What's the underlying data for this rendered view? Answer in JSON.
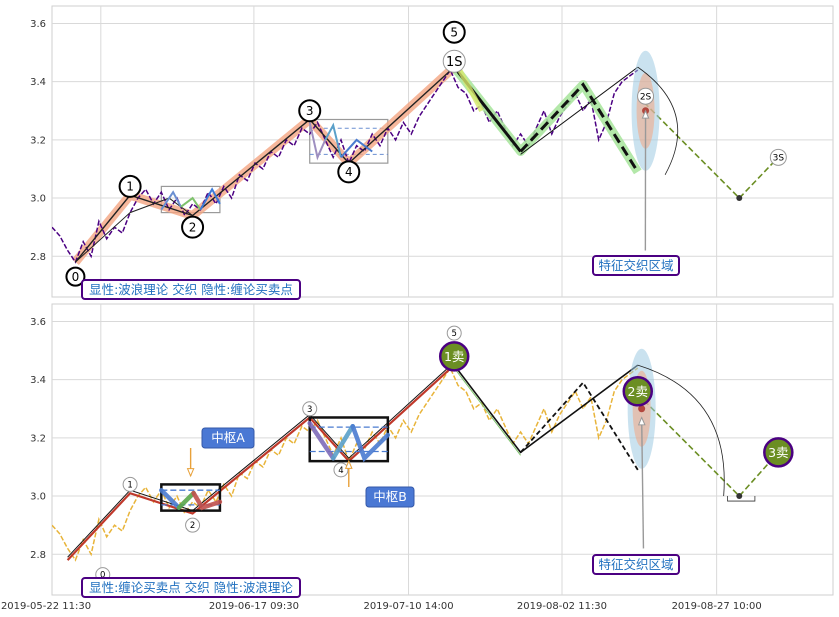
{
  "chart_data": [
    {
      "type": "line",
      "title": "",
      "ylim": [
        2.66,
        3.66
      ],
      "yticks": [
        2.8,
        3.0,
        3.2,
        3.4,
        3.6
      ],
      "grid": true,
      "caption": "显性:波浪理论 交织 隐性:缠论买卖点",
      "region_label": "特征交织区域",
      "price_series": [
        [
          0,
          2.9
        ],
        [
          2,
          2.87
        ],
        [
          4,
          2.82
        ],
        [
          6,
          2.78
        ],
        [
          8,
          2.85
        ],
        [
          10,
          2.8
        ],
        [
          12,
          2.92
        ],
        [
          14,
          2.86
        ],
        [
          16,
          2.9
        ],
        [
          18,
          2.88
        ],
        [
          20,
          2.95
        ],
        [
          22,
          3.0
        ],
        [
          24,
          3.03
        ],
        [
          26,
          2.98
        ],
        [
          28,
          3.02
        ],
        [
          30,
          2.96
        ],
        [
          32,
          3.0
        ],
        [
          34,
          2.94
        ],
        [
          36,
          2.98
        ],
        [
          38,
          2.96
        ],
        [
          40,
          3.02
        ],
        [
          42,
          2.98
        ],
        [
          44,
          3.04
        ],
        [
          46,
          3.0
        ],
        [
          48,
          3.08
        ],
        [
          50,
          3.06
        ],
        [
          52,
          3.12
        ],
        [
          54,
          3.1
        ],
        [
          56,
          3.16
        ],
        [
          58,
          3.14
        ],
        [
          60,
          3.2
        ],
        [
          62,
          3.18
        ],
        [
          64,
          3.24
        ],
        [
          66,
          3.22
        ],
        [
          68,
          3.26
        ],
        [
          70,
          3.2
        ],
        [
          72,
          3.14
        ],
        [
          74,
          3.2
        ],
        [
          76,
          3.12
        ],
        [
          78,
          3.18
        ],
        [
          80,
          3.16
        ],
        [
          82,
          3.22
        ],
        [
          84,
          3.18
        ],
        [
          86,
          3.24
        ],
        [
          88,
          3.2
        ],
        [
          90,
          3.26
        ],
        [
          92,
          3.22
        ],
        [
          94,
          3.28
        ],
        [
          96,
          3.32
        ],
        [
          98,
          3.36
        ],
        [
          100,
          3.4
        ],
        [
          102,
          3.44
        ],
        [
          104,
          3.38
        ],
        [
          106,
          3.36
        ],
        [
          108,
          3.3
        ],
        [
          110,
          3.32
        ],
        [
          112,
          3.26
        ],
        [
          114,
          3.3
        ],
        [
          116,
          3.24
        ],
        [
          118,
          3.18
        ],
        [
          120,
          3.22
        ],
        [
          122,
          3.18
        ],
        [
          124,
          3.24
        ],
        [
          126,
          3.3
        ],
        [
          128,
          3.22
        ],
        [
          130,
          3.28
        ],
        [
          132,
          3.32
        ],
        [
          134,
          3.36
        ],
        [
          136,
          3.3
        ],
        [
          138,
          3.34
        ],
        [
          140,
          3.2
        ],
        [
          142,
          3.26
        ],
        [
          144,
          3.36
        ],
        [
          146,
          3.4
        ],
        [
          148,
          3.42
        ],
        [
          150,
          3.44
        ]
      ],
      "waves": [
        {
          "label": "0",
          "x": 6,
          "y": 2.78
        },
        {
          "label": "1",
          "x": 20,
          "y": 3.01
        },
        {
          "label": "2",
          "x": 36,
          "y": 2.94
        },
        {
          "label": "3",
          "x": 66,
          "y": 3.27
        },
        {
          "label": "4",
          "x": 76,
          "y": 3.12
        },
        {
          "label": "5",
          "x": 103,
          "y": 3.45
        }
      ],
      "sell_points": [
        {
          "label": "1S",
          "x": 103,
          "y": 3.45
        },
        {
          "label": "2S",
          "x": 152,
          "y": 3.34
        },
        {
          "label": "3S",
          "x": 186,
          "y": 3.14
        }
      ],
      "projection": [
        [
          103,
          3.45
        ],
        [
          120,
          3.16
        ],
        [
          136,
          3.39
        ],
        [
          150,
          3.09
        ]
      ]
    },
    {
      "type": "line",
      "title": "",
      "ylim": [
        2.66,
        3.66
      ],
      "yticks": [
        2.8,
        3.0,
        3.2,
        3.4,
        3.6
      ],
      "grid": true,
      "caption": "显性:缠论买卖点 交织 隐性:波浪理论",
      "region_label": "特征交织区域",
      "x_tick_labels": [
        "2019-05-22 11:30",
        "2019-06-17 09:30",
        "2019-07-10 14:00",
        "2019-08-02 11:30",
        "2019-08-27 10:00"
      ],
      "pivots": [
        {
          "label": "中枢A",
          "x0": 28,
          "x1": 43,
          "y0": 2.95,
          "y1": 3.04
        },
        {
          "label": "中枢B",
          "x0": 66,
          "x1": 86,
          "y0": 3.12,
          "y1": 3.27
        }
      ],
      "sell_points": [
        {
          "label": "1卖",
          "x": 103,
          "y": 3.48
        },
        {
          "label": "2卖",
          "x": 150,
          "y": 3.35
        },
        {
          "label": "3卖",
          "x": 186,
          "y": 3.15
        }
      ],
      "wave_labels": [
        "0",
        "1",
        "2",
        "3",
        "4",
        "5"
      ],
      "strokes": [
        [
          4,
          2.78
        ],
        [
          20,
          3.01
        ],
        [
          36,
          2.94
        ],
        [
          66,
          3.27
        ],
        [
          76,
          3.12
        ],
        [
          103,
          3.45
        ],
        [
          120,
          3.15
        ],
        [
          150,
          3.45
        ],
        [
          176,
          3.0
        ]
      ]
    }
  ]
}
